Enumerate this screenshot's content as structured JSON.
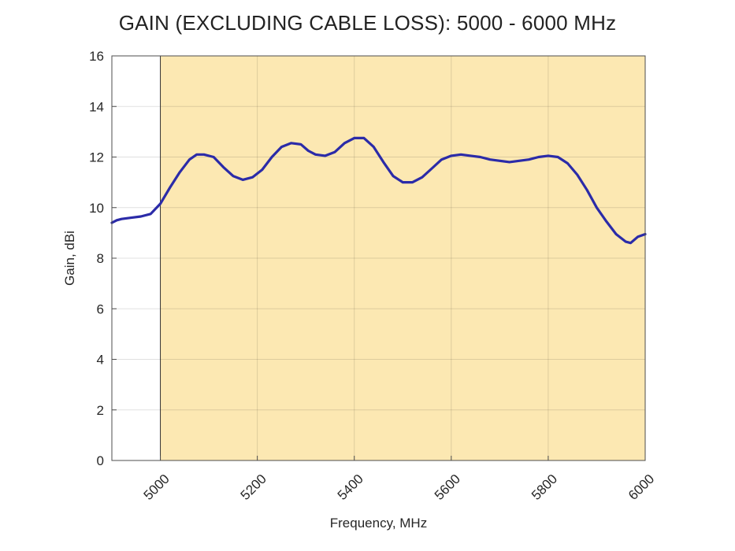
{
  "chart_data": {
    "type": "line",
    "title": "GAIN (EXCLUDING CABLE LOSS): 5000 - 6000 MHz",
    "xlabel": "Frequency, MHz",
    "ylabel": "Gain, dBi",
    "xlim": [
      4900,
      6000
    ],
    "ylim": [
      0,
      16
    ],
    "xticks": [
      5000,
      5200,
      5400,
      5600,
      5800,
      6000
    ],
    "yticks": [
      0,
      2,
      4,
      6,
      8,
      10,
      12,
      14,
      16
    ],
    "grid": true,
    "highlight_band": {
      "from": 5000,
      "to": 6000,
      "color": "#fce8b2"
    },
    "series": [
      {
        "name": "Gain",
        "color": "#2b2ba8",
        "x": [
          4900,
          4910,
          4920,
          4940,
          4960,
          4980,
          5000,
          5020,
          5040,
          5060,
          5075,
          5090,
          5110,
          5130,
          5150,
          5170,
          5190,
          5210,
          5230,
          5250,
          5270,
          5290,
          5305,
          5320,
          5340,
          5360,
          5380,
          5400,
          5420,
          5440,
          5460,
          5480,
          5500,
          5520,
          5540,
          5560,
          5580,
          5600,
          5620,
          5640,
          5660,
          5680,
          5700,
          5720,
          5740,
          5760,
          5780,
          5800,
          5820,
          5840,
          5860,
          5880,
          5900,
          5920,
          5940,
          5960,
          5970,
          5985,
          6000
        ],
        "y": [
          9.4,
          9.5,
          9.55,
          9.6,
          9.65,
          9.75,
          10.15,
          10.8,
          11.4,
          11.9,
          12.1,
          12.1,
          12.0,
          11.6,
          11.25,
          11.1,
          11.2,
          11.5,
          12.0,
          12.4,
          12.55,
          12.5,
          12.25,
          12.1,
          12.05,
          12.2,
          12.55,
          12.75,
          12.75,
          12.4,
          11.8,
          11.25,
          11.0,
          11.0,
          11.2,
          11.55,
          11.9,
          12.05,
          12.1,
          12.05,
          12.0,
          11.9,
          11.85,
          11.8,
          11.85,
          11.9,
          12.0,
          12.05,
          12.0,
          11.75,
          11.3,
          10.7,
          10.0,
          9.45,
          8.95,
          8.65,
          8.6,
          8.85,
          8.95
        ]
      }
    ]
  }
}
